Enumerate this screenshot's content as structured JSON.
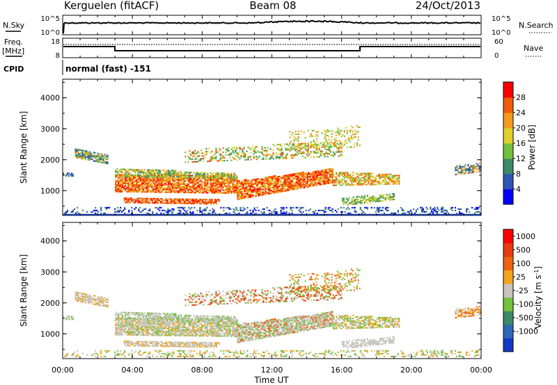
{
  "header": {
    "station": "Kerguelen (fitACF)",
    "beam": "Beam 08",
    "date": "24/Oct/2013"
  },
  "noise_panel": {
    "left_label": "N.Sky",
    "right_label": "N.Search",
    "left_ticks": [
      "10^5",
      "10^0"
    ],
    "right_ticks": [
      "10^5",
      "10^0"
    ]
  },
  "freq_panel": {
    "left_label_1": "Freq.",
    "left_label_2": "[MHz]",
    "right_label": "Nave",
    "left_ticks": [
      "18",
      "8"
    ],
    "right_ticks": [
      "60",
      "0"
    ]
  },
  "cpid": {
    "label": "CPID",
    "text": "normal (fast) -151"
  },
  "chart_data": [
    {
      "type": "heatmap",
      "name": "power",
      "ylabel": "Slant Range [km]",
      "ylim": [
        200,
        4600
      ],
      "yticks": [
        "1000",
        "2000",
        "3000",
        "4000"
      ],
      "xlim": [
        0,
        24
      ],
      "colorbar_label": "Power [dB]",
      "colorbar_ticks": [
        "4",
        "8",
        "12",
        "16",
        "20",
        "24",
        "28"
      ],
      "colors": [
        "#0000ff",
        "#2f55b5",
        "#3c8a68",
        "#73c03f",
        "#e2cf2c",
        "#f29a1b",
        "#ef5c0a",
        "#ff0000"
      ]
    },
    {
      "type": "heatmap",
      "name": "velocity",
      "ylabel": "Slant Range [km]",
      "ylim": [
        200,
        4600
      ],
      "yticks": [
        "1000",
        "2000",
        "3000",
        "4000"
      ],
      "xlim": [
        0,
        24
      ],
      "xlabel": "Time UT",
      "xticks": [
        "00:00",
        "04:00",
        "08:00",
        "12:00",
        "16:00",
        "20:00",
        "00:00"
      ],
      "colorbar_label": "Velocity [m s",
      "colorbar_label_sup": "-1",
      "colorbar_label_end": "]",
      "colorbar_ticks": [
        "1000",
        "500",
        "100",
        "25",
        "-25",
        "-100",
        "-500",
        "-1000"
      ],
      "colors": [
        "#1537c6",
        "#2e68b8",
        "#3f8768",
        "#74c23c",
        "#c7c5be",
        "#f3a51d",
        "#ee6414",
        "#e83a0f",
        "#ff0000"
      ]
    }
  ]
}
